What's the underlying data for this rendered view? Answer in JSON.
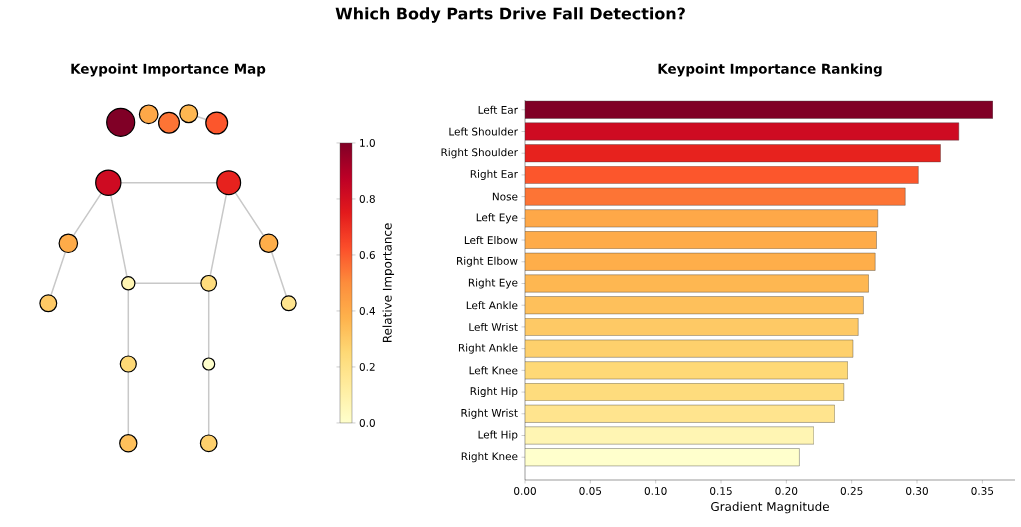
{
  "chart_data": [
    {
      "type": "other",
      "title": "Which Body Parts Drive Fall Detection?",
      "subtitle": "Keypoint Importance Map"
    },
    {
      "type": "bar",
      "orientation": "horizontal",
      "title": "Keypoint Importance Ranking",
      "xlabel": "Gradient Magnitude",
      "categories": [
        "Left Ear",
        "Left Shoulder",
        "Right Shoulder",
        "Right Ear",
        "Nose",
        "Left Eye",
        "Left Elbow",
        "Right Elbow",
        "Right Eye",
        "Left Ankle",
        "Left Wrist",
        "Right Ankle",
        "Left Knee",
        "Right Hip",
        "Right Wrist",
        "Left Hip",
        "Right Knee"
      ],
      "values": [
        0.358,
        0.332,
        0.318,
        0.301,
        0.291,
        0.27,
        0.269,
        0.268,
        0.263,
        0.259,
        0.255,
        0.251,
        0.247,
        0.244,
        0.237,
        0.221,
        0.21
      ],
      "cvalues": [
        1,
        0.82,
        0.73,
        0.61,
        0.55,
        0.41,
        0.4,
        0.39,
        0.36,
        0.33,
        0.3,
        0.28,
        0.25,
        0.23,
        0.18,
        0.07,
        0
      ],
      "xlim": [
        0,
        0.375
      ],
      "xticks": [
        {
          "value": 0,
          "label": "0.00"
        },
        {
          "value": 0.05,
          "label": "0.05"
        },
        {
          "value": 0.1,
          "label": "0.10"
        },
        {
          "value": 0.15,
          "label": "0.15"
        },
        {
          "value": 0.2,
          "label": "0.20"
        },
        {
          "value": 0.25,
          "label": "0.25"
        },
        {
          "value": 0.3,
          "label": "0.30"
        },
        {
          "value": 0.35,
          "label": "0.35"
        }
      ],
      "clim": [
        0,
        1
      ],
      "clabel": "Relative Importance",
      "cticks": [
        {
          "value": 0,
          "label": "0.0"
        },
        {
          "value": 0.2,
          "label": "0.2"
        },
        {
          "value": 0.4,
          "label": "0.4"
        },
        {
          "value": 0.6,
          "label": "0.6"
        },
        {
          "value": 0.8,
          "label": "0.8"
        },
        {
          "value": 1,
          "label": "1.0"
        }
      ]
    }
  ]
}
